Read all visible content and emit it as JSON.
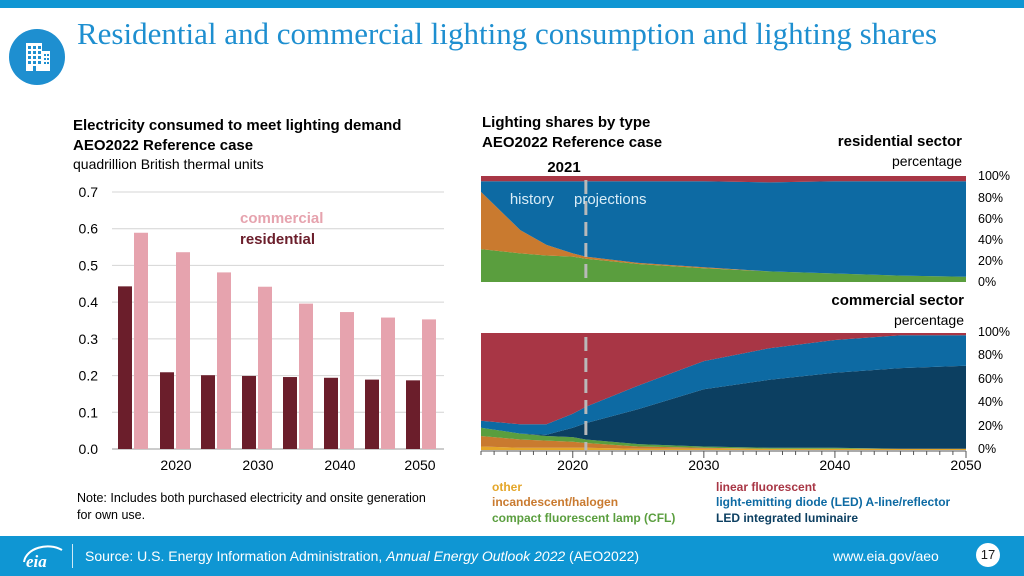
{
  "header": {
    "title": "Residential and commercial lighting consumption and lighting shares",
    "icon": "building-icon"
  },
  "left_chart": {
    "title_line1": "Electricity consumed to meet lighting demand",
    "title_line2": "AEO2022 Reference case",
    "units": "quadrillion British thermal units"
  },
  "right_chart": {
    "title_line1": "Lighting shares by type",
    "title_line2": "AEO2022 Reference case",
    "year_marker": "2021",
    "history_label": "history",
    "projections_label": "projections",
    "residential_title": "residential sector",
    "residential_unit": "percentage",
    "commercial_title": "commercial sector",
    "commercial_unit": "percentage"
  },
  "note": "Note: Includes both purchased electricity and onsite generation for own use.",
  "footer": {
    "source_prefix": "Source: U.S. Energy Information Administration, ",
    "source_title": "Annual Energy Outlook 2022",
    "source_suffix": " (AEO2022)",
    "url": "www.eia.gov/aeo",
    "page_number": "17"
  },
  "colors": {
    "residential": "#6b1e2b",
    "commercial": "#e6a3ae",
    "other": "#e4a629",
    "incandescent": "#c97a2f",
    "cfl": "#5a9e3e",
    "linear_fluorescent": "#a83645",
    "led_aline": "#0d6aa3",
    "led_integrated": "#0c3f61",
    "accent": "#0f96d3"
  },
  "chart_data": [
    {
      "type": "bar",
      "title": "Electricity consumed to meet lighting demand",
      "ylabel": "quadrillion British thermal units",
      "ylim": [
        0,
        0.7
      ],
      "yticks": [
        "0.0",
        "0.1",
        "0.2",
        "0.3",
        "0.4",
        "0.5",
        "0.6",
        "0.7"
      ],
      "categories": [
        "2019",
        "2020",
        "2025",
        "2030",
        "2035",
        "2040",
        "2045",
        "2050"
      ],
      "x_tick_labels": [
        "2020",
        "2030",
        "2040",
        "2050"
      ],
      "series": [
        {
          "name": "residential",
          "values": [
            0.443,
            0.209,
            0.201,
            0.199,
            0.196,
            0.194,
            0.189,
            0.187
          ]
        },
        {
          "name": "commercial",
          "values": [
            0.589,
            0.536,
            0.481,
            0.442,
            0.396,
            0.373,
            0.358,
            0.353
          ]
        }
      ],
      "legend": [
        "commercial",
        "residential"
      ]
    },
    {
      "type": "area",
      "title": "residential sector",
      "ylabel": "percentage",
      "ylim": [
        0,
        100
      ],
      "yticks": [
        "0%",
        "20%",
        "40%",
        "60%",
        "80%",
        "100%"
      ],
      "x": [
        2013,
        2016,
        2018,
        2020,
        2021,
        2025,
        2030,
        2035,
        2040,
        2045,
        2050
      ],
      "series": [
        {
          "name": "other",
          "values": [
            0,
            0,
            0,
            0,
            0,
            0,
            0,
            0,
            0,
            0,
            0
          ]
        },
        {
          "name": "incandescent/halogen",
          "values": [
            0,
            0,
            0,
            0,
            0,
            0,
            0,
            0,
            0,
            0,
            0
          ]
        },
        {
          "name": "compact fluorescent lamp (CFL)",
          "values": [
            31,
            27,
            25,
            24,
            22,
            17,
            13,
            10,
            8,
            6,
            5
          ]
        },
        {
          "name": "incandescent/halogen (upper)",
          "values": [
            54,
            22,
            10,
            3,
            2,
            1,
            1,
            0,
            0,
            0,
            0
          ]
        },
        {
          "name": "light-emitting diode (LED) A-line/reflector",
          "values": [
            10,
            46,
            60,
            68,
            71,
            77,
            81,
            84,
            87,
            89,
            90
          ]
        },
        {
          "name": "linear fluorescent",
          "values": [
            5,
            5,
            5,
            5,
            5,
            5,
            5,
            6,
            5,
            5,
            5
          ]
        }
      ]
    },
    {
      "type": "area",
      "title": "commercial sector",
      "ylabel": "percentage",
      "ylim": [
        0,
        100
      ],
      "yticks": [
        "0%",
        "20%",
        "40%",
        "60%",
        "80%",
        "100%"
      ],
      "x": [
        2013,
        2016,
        2018,
        2020,
        2021,
        2025,
        2030,
        2035,
        2040,
        2045,
        2050
      ],
      "series": [
        {
          "name": "other",
          "values": [
            3,
            2,
            2,
            2,
            2,
            1,
            1,
            1,
            1,
            1,
            1
          ]
        },
        {
          "name": "incandescent/halogen",
          "values": [
            9,
            7,
            6,
            5,
            4,
            2,
            1,
            0,
            0,
            0,
            0
          ]
        },
        {
          "name": "compact fluorescent lamp (CFL)",
          "values": [
            7,
            5,
            4,
            4,
            3,
            2,
            1,
            1,
            1,
            0,
            0
          ]
        },
        {
          "name": "LED integrated luminaire",
          "values": [
            0,
            0,
            1,
            8,
            14,
            30,
            49,
            58,
            64,
            69,
            71
          ]
        },
        {
          "name": "light-emitting diode (LED) A-line/reflector",
          "values": [
            6,
            8,
            9,
            12,
            14,
            20,
            24,
            27,
            28,
            28,
            26
          ]
        },
        {
          "name": "linear fluorescent",
          "values": [
            75,
            78,
            78,
            69,
            63,
            45,
            24,
            13,
            6,
            2,
            2
          ]
        }
      ],
      "x_tick_labels": [
        "2020",
        "2030",
        "2040",
        "2050"
      ]
    }
  ],
  "legend": [
    {
      "label": "other",
      "color": "#e4a629"
    },
    {
      "label": "incandescent/halogen",
      "color": "#c97a2f"
    },
    {
      "label": "compact fluorescent lamp (CFL)",
      "color": "#5a9e3e"
    },
    {
      "label": "linear fluorescent",
      "color": "#a83645"
    },
    {
      "label": "light-emitting diode (LED) A-line/reflector",
      "color": "#0d6aa3"
    },
    {
      "label": "LED integrated luminaire",
      "color": "#0c3f61"
    }
  ]
}
